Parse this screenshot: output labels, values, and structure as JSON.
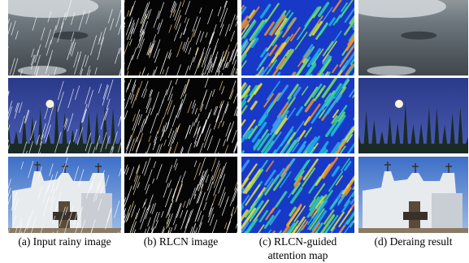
{
  "figure": {
    "columns": [
      {
        "caption": [
          "(a) Input rainy image"
        ]
      },
      {
        "caption": [
          "(b) RLCN image"
        ]
      },
      {
        "caption": [
          "(c) RLCN-guided",
          "attention map"
        ]
      },
      {
        "caption": [
          "(d) Deraing result"
        ]
      }
    ]
  }
}
